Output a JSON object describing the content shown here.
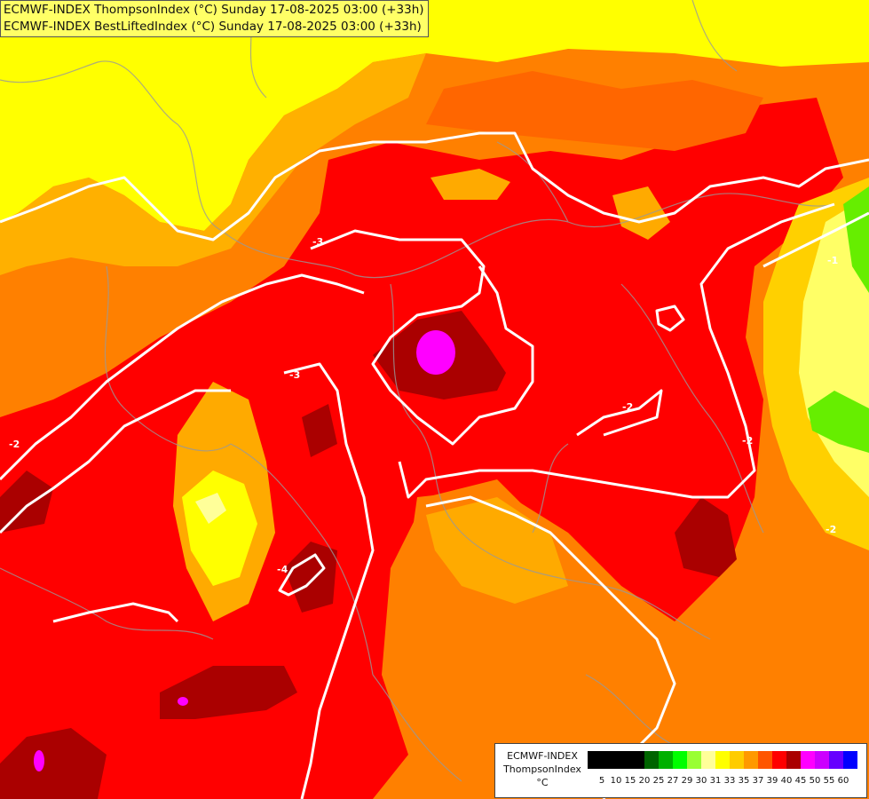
{
  "header": {
    "line1": "ECMWF-INDEX ThompsonIndex (°C) Sunday 17-08-2025 03:00 (+33h)",
    "line2": "ECMWF-INDEX BestLiftedIndex (°C) Sunday 17-08-2025 03:00 (+33h)"
  },
  "legend": {
    "line1": "ECMWF-INDEX",
    "line2": "ThompsonIndex",
    "line3": "°C",
    "swatches": [
      {
        "color": "#000000",
        "label": "5"
      },
      {
        "color": "#000000",
        "label": "10"
      },
      {
        "color": "#000000",
        "label": "15"
      },
      {
        "color": "#000000",
        "label": "20"
      },
      {
        "color": "#006400",
        "label": "25"
      },
      {
        "color": "#00b000",
        "label": "27"
      },
      {
        "color": "#00ff00",
        "label": "29"
      },
      {
        "color": "#99ff33",
        "label": "30"
      },
      {
        "color": "#ffff99",
        "label": "31"
      },
      {
        "color": "#ffff00",
        "label": "33"
      },
      {
        "color": "#ffcc00",
        "label": "35"
      },
      {
        "color": "#ff9900",
        "label": "37"
      },
      {
        "color": "#ff5500",
        "label": "39"
      },
      {
        "color": "#ff0000",
        "label": "40"
      },
      {
        "color": "#aa0000",
        "label": "45"
      },
      {
        "color": "#ff00ff",
        "label": "50"
      },
      {
        "color": "#cc00ff",
        "label": "55"
      },
      {
        "color": "#6600ff",
        "label": "60"
      },
      {
        "color": "#0000ff",
        "label": ""
      }
    ]
  },
  "contour_labels": [
    "-3",
    "-3",
    "-2",
    "-2",
    "-2",
    "-4",
    "-1",
    "-2"
  ],
  "colors": {
    "yellow": "#ffff00",
    "light_orange": "#ffaa00",
    "orange": "#ff7700",
    "dark_orange": "#ff4400",
    "red": "#ff0000",
    "dark_red": "#aa0000",
    "magenta": "#ff00ff",
    "green": "#00ff00",
    "contour": "#ffffff",
    "border": "#888888"
  }
}
